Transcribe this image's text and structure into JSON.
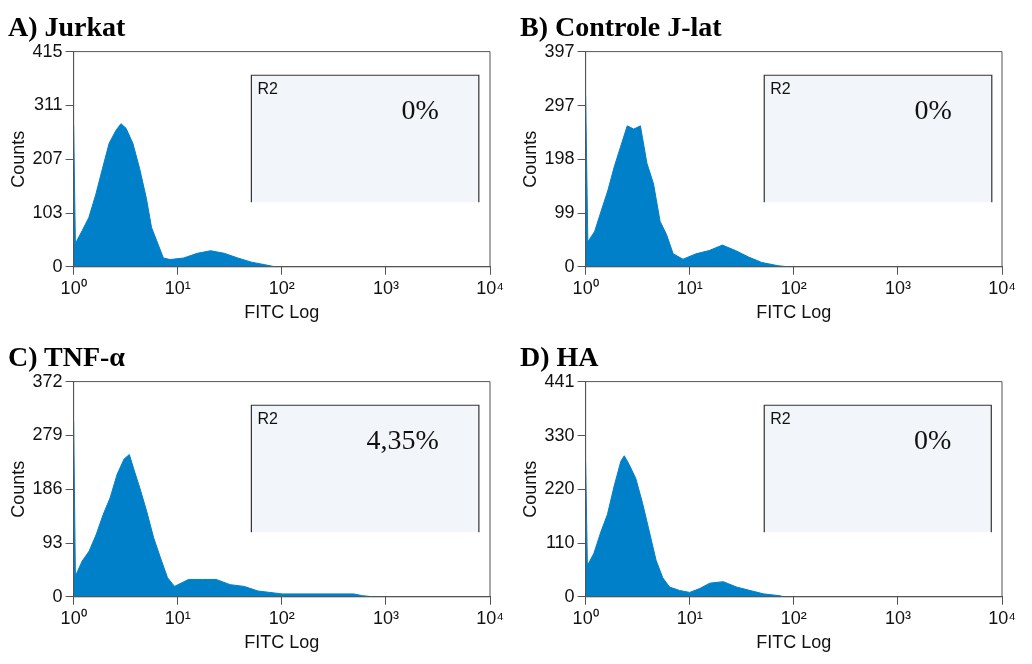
{
  "chart_data": [
    {
      "type": "area",
      "title": "A) Jurkat",
      "xlabel": "FITC Log",
      "ylabel": "Counts",
      "log": "x",
      "color": "#0080c8",
      "x": [
        1,
        1.04,
        1.21,
        1.4,
        1.63,
        1.89,
        2.19,
        2.55,
        2.85,
        3.19,
        3.71,
        4.31,
        5.0,
        5.6,
        6.26,
        7.28,
        8.45,
        11.4,
        15.4,
        20.7,
        28.0,
        37.8,
        51.0,
        68.8,
        86.1
      ],
      "values": [
        274,
        45,
        70,
        95,
        139,
        189,
        238,
        263,
        276,
        267,
        238,
        189,
        132,
        76,
        51,
        17,
        14,
        17,
        26,
        31,
        26,
        17,
        9,
        4,
        0
      ],
      "xlim": [
        1,
        10000
      ],
      "xticks": [
        {
          "value": 1,
          "label": "10⁰"
        },
        {
          "value": 10,
          "label": "10¹"
        },
        {
          "value": 100,
          "label": "10²"
        },
        {
          "value": 1000,
          "label": "10³"
        },
        {
          "value": 10000,
          "label": "10⁴"
        }
      ],
      "ylim": [
        0,
        415
      ],
      "yticks": [
        0,
        103,
        207,
        311,
        415
      ],
      "bands": [
        {
          "axis": "x",
          "from": 51,
          "to": 7810,
          "label": "R2"
        }
      ],
      "annotations": [
        "0%"
      ]
    },
    {
      "type": "area",
      "title": "B) Controle J-lat",
      "xlabel": "FITC Log",
      "ylabel": "Counts",
      "log": "x",
      "color": "#0080c8",
      "x": [
        1,
        1.05,
        1.22,
        1.41,
        1.63,
        1.88,
        2.17,
        2.51,
        2.9,
        3.36,
        3.88,
        4.49,
        5.19,
        6.0,
        6.93,
        8.62,
        11.5,
        15.4,
        20.6,
        27.5,
        36.8,
        49.1,
        70.6,
        87.8
      ],
      "values": [
        315,
        46,
        65,
        103,
        140,
        184,
        222,
        260,
        254,
        260,
        191,
        153,
        84,
        59,
        24,
        14,
        24,
        30,
        40,
        30,
        18,
        8,
        2,
        0
      ],
      "xlim": [
        1,
        10000
      ],
      "xticks": [
        {
          "value": 1,
          "label": "10⁰"
        },
        {
          "value": 10,
          "label": "10¹"
        },
        {
          "value": 100,
          "label": "10²"
        },
        {
          "value": 1000,
          "label": "10³"
        },
        {
          "value": 10000,
          "label": "10⁴"
        }
      ],
      "ylim": [
        0,
        397
      ],
      "yticks": [
        0,
        99,
        198,
        297,
        397
      ],
      "bands": [
        {
          "axis": "x",
          "from": 52,
          "to": 7980,
          "label": "R2"
        }
      ],
      "annotations": [
        "0%"
      ]
    },
    {
      "type": "area",
      "title": "C) TNF-α",
      "xlabel": "FITC Log",
      "ylabel": "Counts",
      "log": "x",
      "color": "#0080c8",
      "x": [
        1,
        1.04,
        1.21,
        1.41,
        1.65,
        1.92,
        2.24,
        2.62,
        3.05,
        3.43,
        3.84,
        4.31,
        5.03,
        5.87,
        6.84,
        7.98,
        9.31,
        12.7,
        17.2,
        23.4,
        31.9,
        43.4,
        59.0,
        101,
        187,
        347,
        490,
        594,
        748
      ],
      "values": [
        303,
        36,
        62,
        79,
        108,
        142,
        171,
        212,
        238,
        246,
        217,
        189,
        148,
        102,
        67,
        33,
        18,
        30,
        30,
        30,
        21,
        18,
        10,
        5,
        5,
        5,
        5,
        2,
        0
      ],
      "xlim": [
        1,
        10000
      ],
      "xticks": [
        {
          "value": 1,
          "label": "10⁰"
        },
        {
          "value": 10,
          "label": "10¹"
        },
        {
          "value": 100,
          "label": "10²"
        },
        {
          "value": 1000,
          "label": "10³"
        },
        {
          "value": 10000,
          "label": "10⁴"
        }
      ],
      "ylim": [
        0,
        372
      ],
      "yticks": [
        0,
        93,
        186,
        279,
        372
      ],
      "bands": [
        {
          "axis": "x",
          "from": 51,
          "to": 7820,
          "label": "R2"
        }
      ],
      "annotations": [
        "4,35%"
      ]
    },
    {
      "type": "area",
      "title": "D) HA",
      "xlabel": "FITC Log",
      "ylabel": "Counts",
      "log": "x",
      "color": "#0080c8",
      "x": [
        1,
        1.04,
        1.2,
        1.4,
        1.62,
        1.88,
        2.18,
        2.35,
        2.62,
        3.04,
        3.53,
        4.1,
        4.75,
        5.51,
        6.4,
        7.99,
        9.98,
        12.5,
        15.6,
        21.0,
        28.2,
        37.9,
        51.1,
        74.0,
        79.8
      ],
      "values": [
        275,
        64,
        89,
        133,
        169,
        227,
        278,
        289,
        271,
        242,
        191,
        133,
        75,
        39,
        20,
        13,
        9,
        17,
        28,
        31,
        20,
        13,
        6,
        2,
        0
      ],
      "xlim": [
        1,
        10000
      ],
      "xticks": [
        {
          "value": 1,
          "label": "10⁰"
        },
        {
          "value": 10,
          "label": "10¹"
        },
        {
          "value": 100,
          "label": "10²"
        },
        {
          "value": 1000,
          "label": "10³"
        },
        {
          "value": 10000,
          "label": "10⁴"
        }
      ],
      "ylim": [
        0,
        441
      ],
      "yticks": [
        0,
        110,
        220,
        330,
        441
      ],
      "bands": [
        {
          "axis": "x",
          "from": 52,
          "to": 7890,
          "label": "R2"
        }
      ],
      "annotations": [
        "0%"
      ]
    }
  ]
}
